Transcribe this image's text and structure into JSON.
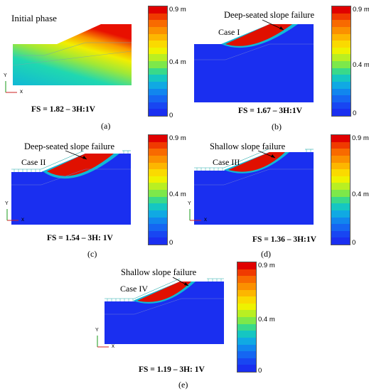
{
  "colorbar": {
    "labels": {
      "top": "0.9 m",
      "mid": "0.4 m",
      "bottom": "0"
    },
    "colors": [
      "#e00000",
      "#f03a00",
      "#f86a00",
      "#fb9000",
      "#fdb600",
      "#fada00",
      "#eef200",
      "#b9ef22",
      "#7de84a",
      "#39d98a",
      "#15c6c2",
      "#10a9e3",
      "#1186ee",
      "#1566f2",
      "#1846f2",
      "#1a2ff0"
    ]
  },
  "axis_labels": {
    "y": "Y",
    "x": "x"
  },
  "panels": {
    "a": {
      "caption": "(a)",
      "fs": "FS = 1.82 – 3H:1V",
      "title": "Initial phase"
    },
    "b": {
      "caption": "(b)",
      "fs": "FS = 1.67 – 3H:1V",
      "failure": "Deep-seated slope failure",
      "case": "Case I"
    },
    "c": {
      "caption": "(c)",
      "fs": "FS = 1.54 – 3H: 1V",
      "failure": "Deep-seated slope failure",
      "case": "Case II"
    },
    "d": {
      "caption": "(d)",
      "fs": "FS = 1.36 – 3H:1V",
      "failure": "Shallow slope failure",
      "case": "Case III"
    },
    "e": {
      "caption": "(e)",
      "fs": "FS = 1.19 – 3H: 1V",
      "failure": "Shallow slope failure",
      "case": "Case IV"
    }
  }
}
